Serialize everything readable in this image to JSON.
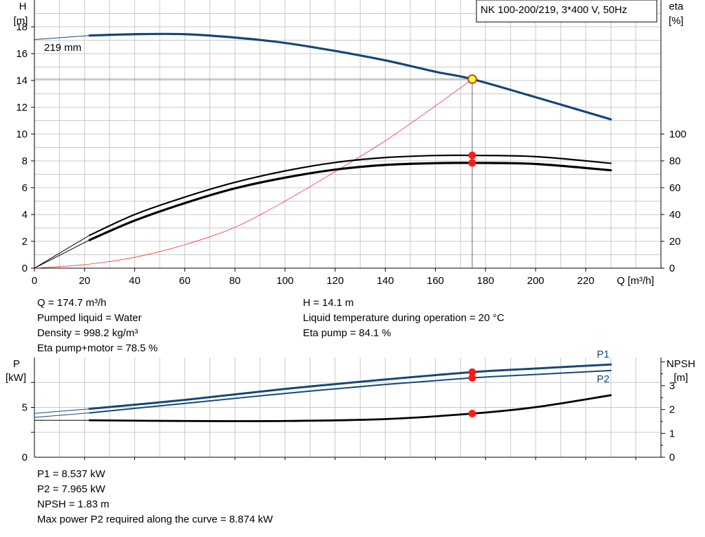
{
  "colors": {
    "head_curve": "#14477a",
    "power_curve": "#14477a",
    "efficiency_curve": "#000000",
    "npsh_curve": "#000000",
    "system_curve": "#ff3030",
    "operating_point": "#ff1a1a",
    "duty_point_fill": "#ffff33",
    "grid": "#c8c8c8"
  },
  "chart_data": [
    {
      "type": "line",
      "title": "NK 100-200/219, 3*400 V, 50Hz",
      "x_unit_label": "Q [m³/h]",
      "y_left_label": [
        "H",
        "[m]"
      ],
      "y_right_label": [
        "eta",
        "[%]"
      ],
      "xlim": [
        0,
        250
      ],
      "ylim_left": [
        0,
        20
      ],
      "ylim_right": [
        0,
        200
      ],
      "x_ticks": [
        "0",
        "20",
        "40",
        "60",
        "80",
        "100",
        "120",
        "140",
        "160",
        "180",
        "200",
        "220"
      ],
      "y_left_ticks": [
        "0",
        "2",
        "4",
        "6",
        "8",
        "10",
        "12",
        "14",
        "16",
        "18"
      ],
      "y_right_ticks": [
        "0",
        "20",
        "40",
        "60",
        "80",
        "100"
      ],
      "grid": true,
      "curve_label": "219 mm",
      "series": [
        {
          "key": "head",
          "axis": "left",
          "x": [
            0,
            22,
            40,
            60,
            80,
            100,
            120,
            140,
            160,
            174.7,
            200,
            230
          ],
          "y": [
            17.05,
            17.35,
            17.45,
            17.45,
            17.2,
            16.8,
            16.2,
            15.5,
            14.65,
            14.1,
            12.75,
            11.1
          ],
          "thin_until_x": 22
        },
        {
          "key": "eta_pump",
          "axis": "right",
          "x": [
            0,
            22,
            40,
            60,
            80,
            100,
            120,
            140,
            160,
            174.7,
            200,
            230
          ],
          "y": [
            0,
            24.5,
            40,
            53,
            64,
            72.5,
            78.8,
            82.5,
            84,
            84.1,
            83.2,
            78.2
          ],
          "thin_until_x": 22
        },
        {
          "key": "eta_total",
          "axis": "right",
          "x": [
            0,
            22,
            40,
            60,
            80,
            100,
            120,
            140,
            160,
            174.7,
            200,
            230
          ],
          "y": [
            0,
            21,
            35.5,
            48.5,
            59.5,
            67.5,
            73.5,
            77,
            78.3,
            78.5,
            77.7,
            73
          ],
          "thin_until_x": 22
        },
        {
          "key": "system",
          "axis": "left",
          "x": [
            0,
            20,
            40,
            60,
            80,
            100,
            120,
            140,
            160,
            174.7
          ],
          "y": [
            0,
            0.26,
            0.81,
            1.75,
            3.05,
            5.0,
            7.2,
            9.5,
            12.1,
            14.1
          ]
        }
      ],
      "operating_point": {
        "Q": 174.7,
        "H": 14.1,
        "eta_pump": 84.1,
        "eta_total": 78.5
      }
    },
    {
      "type": "line",
      "y_left_label": [
        "P",
        "[kW]"
      ],
      "y_right_label": [
        "NPSH",
        "[m]"
      ],
      "xlim": [
        0,
        250
      ],
      "ylim_left": [
        0,
        10
      ],
      "ylim_right": [
        0,
        4.18
      ],
      "y_left_ticks": [
        "0",
        "5"
      ],
      "y_right_ticks": [
        "0",
        "1",
        "2",
        "3"
      ],
      "grid": true,
      "series": [
        {
          "key": "P1",
          "name": "P1",
          "axis": "left",
          "x": [
            0,
            22,
            60,
            100,
            140,
            174.7,
            200,
            230
          ],
          "y": [
            4.4,
            4.85,
            5.75,
            6.85,
            7.8,
            8.537,
            8.9,
            9.3
          ],
          "thin_until_x": 22
        },
        {
          "key": "P2",
          "name": "P2",
          "axis": "left",
          "x": [
            0,
            22,
            60,
            100,
            140,
            174.7,
            200,
            230
          ],
          "y": [
            4.0,
            4.45,
            5.4,
            6.4,
            7.3,
            7.965,
            8.3,
            8.7
          ],
          "thin_until_x": 22
        },
        {
          "key": "npsh",
          "axis": "right",
          "x": [
            0,
            22,
            60,
            100,
            140,
            174.7,
            200,
            230
          ],
          "y": [
            1.55,
            1.55,
            1.52,
            1.52,
            1.6,
            1.83,
            2.1,
            2.6
          ],
          "thin_until_x": 22
        }
      ],
      "operating_point": {
        "Q": 174.7,
        "P1": 8.537,
        "P2": 7.965,
        "NPSH": 1.83
      }
    }
  ],
  "info_top_left": [
    "Q = 174.7 m³/h",
    "Pumped liquid = Water",
    "Density = 998.2 kg/m³",
    "Eta pump+motor = 78.5 %"
  ],
  "info_top_right": [
    "H = 14.1 m",
    "Liquid temperature during operation = 20 °C",
    "Eta pump = 84.1 %"
  ],
  "info_bottom": [
    "P1 = 8.537 kW",
    "P2 = 7.965 kW",
    "NPSH = 1.83 m",
    "Max power P2 required along the curve = 8.874 kW"
  ]
}
